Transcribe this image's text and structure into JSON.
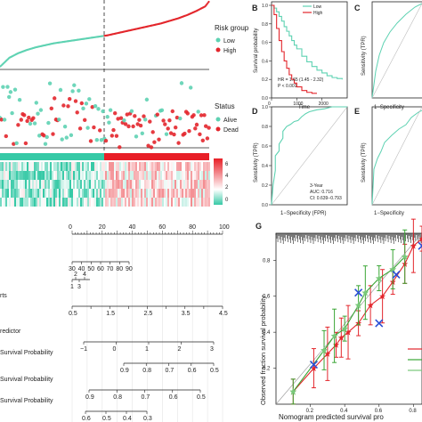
{
  "colors": {
    "low": "#5ed2b2",
    "high": "#e3262c",
    "heat_low": "#36c9a6",
    "heat_high": "#e81f27",
    "roc": "#5ed2b2"
  },
  "panelA": {
    "legend_title": "Risk group",
    "legend_low": "Low",
    "legend_high": "High",
    "status_title": "Status",
    "status_alive": "Alive",
    "status_dead": "Dead",
    "heat_ticks": [
      "6",
      "4",
      "2",
      "0"
    ]
  },
  "panelB": {
    "letter": "B",
    "legend_low": "Low",
    "legend_high": "High",
    "ylabel": "Survival probability",
    "xlabel": "Time",
    "x_ticks": [
      "0",
      "1000",
      "2000"
    ],
    "y_ticks": [
      "0.0",
      "0.2",
      "0.4",
      "0.6",
      "0.8",
      "1.0"
    ],
    "hr_text": "HR = 1.65 (1.45 - 2.32)",
    "p_text": "P < 0.001"
  },
  "panelC": {
    "letter": "C",
    "ylabel": "Sensitivity (TPR)",
    "xlabel": "1−Specificity"
  },
  "panelD": {
    "letter": "D",
    "ylabel": "Sensitivity (TPR)",
    "xlabel": "1−Specificity (FPR)",
    "ticks": [
      "0.0",
      "0.2",
      "0.4",
      "0.6",
      "0.8",
      "1.0"
    ],
    "ann1": "3-Year",
    "ann2": "AUC: 0.716",
    "ann3": "CI: 0.639−0.793"
  },
  "panelE": {
    "letter": "E",
    "ylabel": "Sensitivity (TPR)",
    "xlabel": "1−Specificity"
  },
  "nomogram": {
    "rows": [
      {
        "label": "",
        "ticks": [
          "0",
          "10",
          "20",
          "30",
          "40",
          "50",
          "60",
          "70",
          "80",
          "90",
          "100"
        ]
      },
      {
        "label": "",
        "ticks": [
          "30",
          "40",
          "50",
          "60",
          "70",
          "80",
          "90"
        ]
      },
      {
        "label": "",
        "ticks": [
          "2",
          "4",
          "1",
          "3"
        ]
      },
      {
        "label": "rts",
        "ticks": [
          "0.5",
          "1",
          "1.5",
          "2",
          "2.5",
          "3",
          "3.5",
          "4",
          "4.5"
        ]
      },
      {
        "label": "redictor",
        "ticks": [
          "−1",
          "0",
          "1",
          "2",
          "3"
        ]
      },
      {
        "label": "Survival Probability",
        "ticks": [
          "0.9",
          "0.8",
          "0.7",
          "0.6",
          "0.5"
        ]
      },
      {
        "label": "Survival Probability",
        "ticks": [
          "0.9",
          "0.8",
          "0.7",
          "0.6",
          "0.5"
        ]
      },
      {
        "label": "Survival Probability",
        "ticks": [
          "0.6",
          "0.5",
          "0.4",
          "0.3"
        ]
      }
    ]
  },
  "panelG": {
    "letter": "G",
    "ylabel": "Observed fraction survival probability",
    "xlabel": "Nomogram predicted survival pro",
    "x_ticks": [
      "0.2",
      "0.4",
      "0.6",
      "0.8"
    ],
    "y_ticks": [
      "0.2",
      "0.4",
      "0.6",
      "0.8"
    ]
  },
  "chart_data": [
    {
      "type": "scatter",
      "panel": "A-risk-score",
      "x_index": [
        0,
        10,
        20,
        30,
        40,
        50,
        60,
        70,
        80,
        90,
        100,
        110,
        120,
        130,
        140,
        150,
        160,
        170,
        180,
        190,
        200,
        210,
        220,
        230,
        234
      ],
      "values": [
        0.02,
        0.15,
        0.22,
        0.27,
        0.31,
        0.34,
        0.37,
        0.39,
        0.41,
        0.43,
        0.45,
        0.47,
        0.49,
        0.52,
        0.55,
        0.58,
        0.61,
        0.64,
        0.67,
        0.71,
        0.75,
        0.8,
        0.86,
        0.93,
        1.0
      ],
      "cutoff_index": 117,
      "series": [
        {
          "name": "Low"
        },
        {
          "name": "High"
        }
      ]
    },
    {
      "type": "line",
      "panel": "B",
      "x_range": [
        0,
        3000
      ],
      "series": [
        {
          "name": "Low",
          "x": [
            0,
            100,
            200,
            300,
            400,
            500,
            600,
            700,
            800,
            900,
            1000,
            1200,
            1400,
            1600,
            1800,
            2000,
            2200,
            2400,
            2600,
            2800
          ],
          "y": [
            1.0,
            0.97,
            0.93,
            0.88,
            0.83,
            0.77,
            0.72,
            0.67,
            0.62,
            0.57,
            0.53,
            0.45,
            0.39,
            0.34,
            0.3,
            0.27,
            0.24,
            0.22,
            0.21,
            0.2
          ]
        },
        {
          "name": "High",
          "x": [
            0,
            100,
            200,
            300,
            400,
            500,
            600,
            700,
            800,
            900,
            1000,
            1200,
            1400,
            1600,
            1800
          ],
          "y": [
            1.0,
            0.9,
            0.75,
            0.62,
            0.5,
            0.4,
            0.32,
            0.25,
            0.2,
            0.16,
            0.12,
            0.08,
            0.06,
            0.05,
            0.05
          ]
        }
      ],
      "ylim": [
        0,
        1
      ]
    },
    {
      "type": "line",
      "panel": "D",
      "x": [
        0.0,
        0.02,
        0.05,
        0.05,
        0.1,
        0.1,
        0.15,
        0.15,
        0.2,
        0.25,
        0.3,
        0.35,
        0.4,
        0.45,
        0.5,
        0.6,
        0.7,
        0.8,
        1.0
      ],
      "y": [
        0.0,
        0.2,
        0.35,
        0.5,
        0.55,
        0.62,
        0.68,
        0.75,
        0.8,
        0.82,
        0.85,
        0.86,
        0.9,
        0.93,
        0.95,
        0.97,
        0.98,
        1.0,
        1.0
      ],
      "xlim": [
        0,
        1
      ],
      "ylim": [
        0,
        1
      ]
    },
    {
      "type": "scatter",
      "panel": "G",
      "xlim": [
        0,
        0.85
      ],
      "ylim": [
        0,
        0.95
      ],
      "series": [
        {
          "name": "red",
          "x": [
            0.1,
            0.22,
            0.3,
            0.35,
            0.38,
            0.42,
            0.48,
            0.55,
            0.62,
            0.68,
            0.75,
            0.8,
            0.85
          ],
          "y": [
            0.07,
            0.2,
            0.28,
            0.33,
            0.37,
            0.4,
            0.45,
            0.55,
            0.6,
            0.68,
            0.78,
            0.88,
            0.92
          ]
        },
        {
          "name": "green",
          "x": [
            0.1,
            0.28,
            0.34,
            0.4,
            0.48,
            0.52,
            0.6,
            0.68,
            0.75
          ],
          "y": [
            0.07,
            0.3,
            0.38,
            0.42,
            0.55,
            0.62,
            0.7,
            0.75,
            0.82
          ]
        },
        {
          "name": "blue-x",
          "x": [
            0.22,
            0.48,
            0.6,
            0.7,
            0.85
          ],
          "y": [
            0.22,
            0.62,
            0.45,
            0.72,
            0.88
          ]
        }
      ]
    }
  ]
}
